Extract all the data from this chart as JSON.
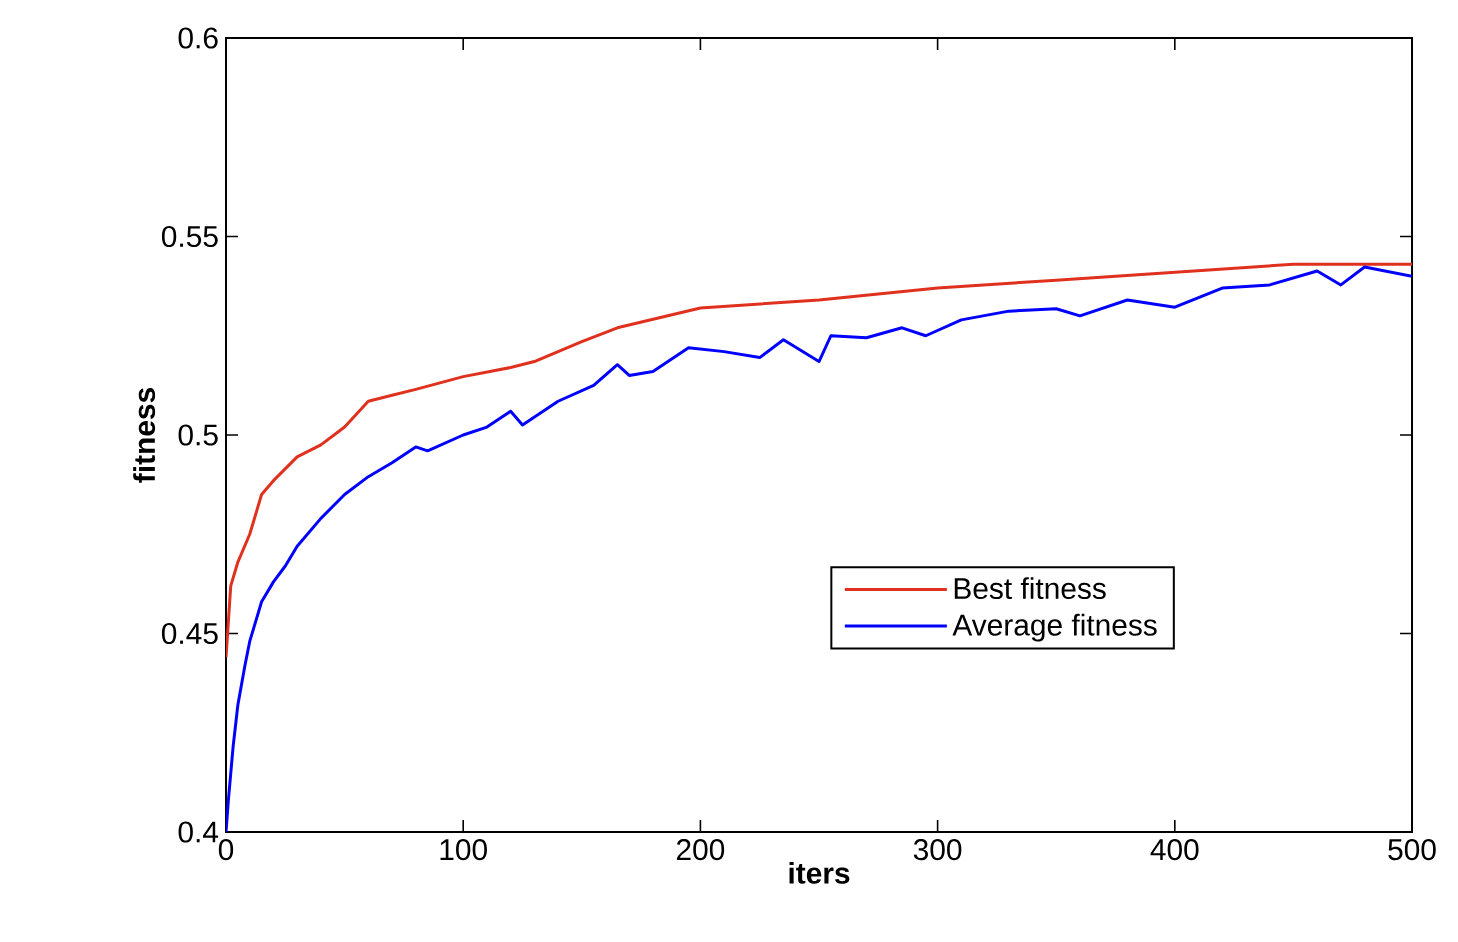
{
  "chart_data": {
    "type": "line",
    "xlabel": "iters",
    "ylabel": "fitness",
    "xlim": [
      0,
      500
    ],
    "ylim": [
      0.4,
      0.6
    ],
    "xticks": [
      0,
      100,
      200,
      300,
      400,
      500
    ],
    "yticks": [
      0.4,
      0.45,
      0.5,
      0.55,
      0.6
    ],
    "grid": false,
    "legend": "right",
    "marker": "none",
    "line_style": "solid",
    "series": [
      {
        "name": "Best fitness",
        "color": "#e0301e",
        "x": [
          0,
          2,
          5,
          10,
          15,
          20,
          30,
          40,
          50,
          60,
          70,
          80,
          100,
          120,
          130,
          150,
          165,
          200,
          250,
          300,
          350,
          400,
          450,
          500
        ],
        "values": [
          0.444,
          0.462,
          0.468,
          0.475,
          0.485,
          0.4885,
          0.4945,
          0.4975,
          0.502,
          0.5085,
          0.51,
          0.5115,
          0.5147,
          0.517,
          0.5185,
          0.5235,
          0.527,
          0.532,
          0.534,
          0.537,
          0.539,
          0.541,
          0.543,
          0.543
        ]
      },
      {
        "name": "Average fitness",
        "color": "#0000ff",
        "x": [
          0,
          1,
          3,
          5,
          8,
          10,
          15,
          20,
          25,
          30,
          40,
          50,
          60,
          70,
          80,
          85,
          100,
          110,
          120,
          125,
          140,
          155,
          165,
          170,
          180,
          195,
          210,
          225,
          235,
          250,
          255,
          270,
          285,
          295,
          310,
          330,
          350,
          360,
          380,
          400,
          420,
          440,
          460,
          470,
          480,
          500
        ],
        "values": [
          0.4,
          0.408,
          0.4215,
          0.432,
          0.442,
          0.448,
          0.458,
          0.463,
          0.467,
          0.472,
          0.479,
          0.485,
          0.4895,
          0.493,
          0.497,
          0.496,
          0.5,
          0.502,
          0.506,
          0.5025,
          0.5085,
          0.5125,
          0.5177,
          0.515,
          0.516,
          0.522,
          0.521,
          0.5195,
          0.524,
          0.5185,
          0.525,
          0.5245,
          0.527,
          0.525,
          0.529,
          0.5312,
          0.5318,
          0.53,
          0.534,
          0.5322,
          0.537,
          0.5378,
          0.5413,
          0.5378,
          0.5423,
          0.54
        ]
      }
    ]
  }
}
